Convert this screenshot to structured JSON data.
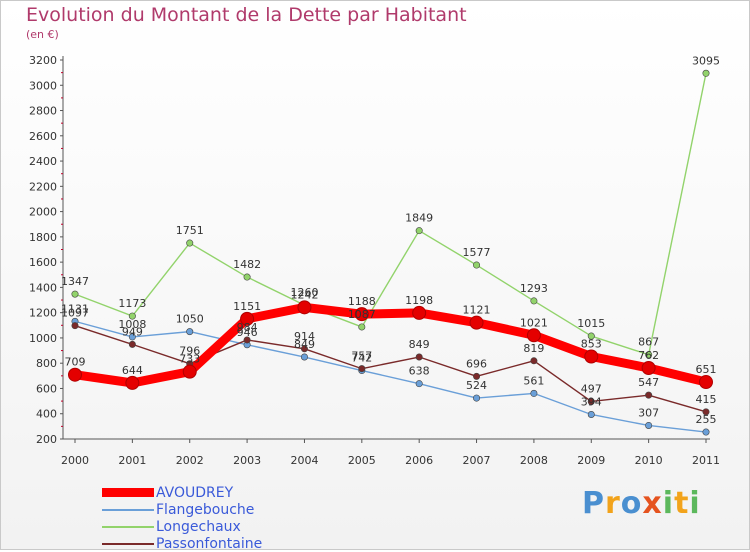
{
  "chart_data": {
    "type": "line",
    "title": "Evolution du Montant de la Dette par Habitant",
    "subtitle": "(en €)",
    "x": [
      "2000",
      "2001",
      "2002",
      "2003",
      "2004",
      "2005",
      "2006",
      "2007",
      "2008",
      "2009",
      "2010",
      "2011"
    ],
    "yticks": [
      200,
      400,
      600,
      800,
      1000,
      1200,
      1400,
      1600,
      1800,
      2000,
      2200,
      2400,
      2600,
      2800,
      3000,
      3200
    ],
    "ylim": [
      200,
      3200
    ],
    "grid": false,
    "legend_position": "bottom-left",
    "series": [
      {
        "name": "AVOUDREY",
        "color": "#ff0000",
        "values": [
          709,
          644,
          733,
          1151,
          1242,
          1188,
          1198,
          1121,
          1021,
          853,
          762,
          651
        ]
      },
      {
        "name": "Flangebouche",
        "color": "#6a9fd8",
        "values": [
          1131,
          1008,
          1050,
          946,
          849,
          742,
          638,
          524,
          561,
          394,
          307,
          255
        ]
      },
      {
        "name": "Longechaux",
        "color": "#92d36b",
        "values": [
          1347,
          1173,
          1751,
          1482,
          1260,
          1087,
          1849,
          1577,
          1293,
          1015,
          867,
          3095
        ]
      },
      {
        "name": "Passonfontaine",
        "color": "#7a2a2a",
        "values": [
          1097,
          949,
          796,
          984,
          914,
          757,
          849,
          696,
          819,
          497,
          547,
          415
        ]
      }
    ]
  },
  "logo": {
    "p": "P",
    "r": "r",
    "o": "o",
    "x": "x",
    "i1": "i",
    "t": "t",
    "i2": "i"
  }
}
